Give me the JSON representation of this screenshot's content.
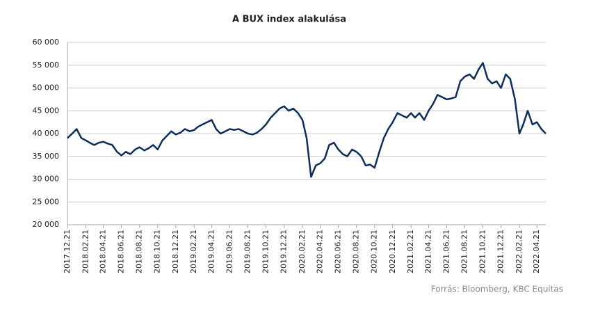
{
  "chart_data": {
    "type": "line",
    "title": "A BUX index alakulása",
    "source": "Forrás: Bloomberg, KBC Equitas",
    "x": [
      "2017.12.21",
      "2018.01.06",
      "2018.01.21",
      "2018.02.06",
      "2018.02.21",
      "2018.03.06",
      "2018.03.21",
      "2018.04.06",
      "2018.04.21",
      "2018.05.06",
      "2018.05.21",
      "2018.06.06",
      "2018.06.21",
      "2018.07.06",
      "2018.07.21",
      "2018.08.06",
      "2018.08.21",
      "2018.09.06",
      "2018.09.21",
      "2018.10.06",
      "2018.10.21",
      "2018.11.06",
      "2018.11.21",
      "2018.12.06",
      "2018.12.21",
      "2019.01.06",
      "2019.01.21",
      "2019.02.06",
      "2019.02.21",
      "2019.03.06",
      "2019.03.21",
      "2019.04.06",
      "2019.04.21",
      "2019.05.06",
      "2019.05.21",
      "2019.06.06",
      "2019.06.21",
      "2019.07.06",
      "2019.07.21",
      "2019.08.06",
      "2019.08.21",
      "2019.09.06",
      "2019.09.21",
      "2019.10.06",
      "2019.10.21",
      "2019.11.06",
      "2019.11.21",
      "2019.12.06",
      "2019.12.21",
      "2020.01.06",
      "2020.01.21",
      "2020.02.06",
      "2020.02.21",
      "2020.03.06",
      "2020.03.21",
      "2020.04.06",
      "2020.04.21",
      "2020.05.06",
      "2020.05.21",
      "2020.06.06",
      "2020.06.21",
      "2020.07.06",
      "2020.07.21",
      "2020.08.06",
      "2020.08.21",
      "2020.09.06",
      "2020.09.21",
      "2020.10.06",
      "2020.10.21",
      "2020.11.06",
      "2020.11.21",
      "2020.12.06",
      "2020.12.21",
      "2021.01.06",
      "2021.01.21",
      "2021.02.06",
      "2021.02.21",
      "2021.03.06",
      "2021.03.21",
      "2021.04.06",
      "2021.04.21",
      "2021.05.06",
      "2021.05.21",
      "2021.06.06",
      "2021.06.21",
      "2021.07.06",
      "2021.07.21",
      "2021.08.06",
      "2021.08.21",
      "2021.09.06",
      "2021.09.21",
      "2021.10.06",
      "2021.10.21",
      "2021.11.06",
      "2021.11.21",
      "2021.12.06",
      "2021.12.21",
      "2022.01.06",
      "2022.01.21",
      "2022.02.06",
      "2022.02.21",
      "2022.03.06",
      "2022.03.21",
      "2022.04.06",
      "2022.04.21",
      "2022.05.06",
      "2022.05.21"
    ],
    "series": [
      {
        "name": "BUX",
        "color": "#0d2d5a",
        "values": [
          39000,
          40000,
          41000,
          39000,
          38500,
          38000,
          37500,
          38000,
          38200,
          37800,
          37500,
          36000,
          35200,
          36000,
          35500,
          36500,
          37000,
          36300,
          36800,
          37500,
          36500,
          38500,
          39500,
          40500,
          39800,
          40200,
          41000,
          40500,
          40800,
          41500,
          42000,
          42500,
          43000,
          41000,
          40000,
          40500,
          41000,
          40800,
          41000,
          40500,
          40000,
          39800,
          40200,
          41000,
          42000,
          43500,
          44500,
          45500,
          46000,
          45000,
          45500,
          44500,
          43000,
          39000,
          30500,
          33000,
          33500,
          34500,
          37500,
          38000,
          36500,
          35500,
          35000,
          36500,
          36000,
          35000,
          33000,
          33200,
          32500,
          36000,
          39000,
          41000,
          42500,
          44500,
          44000,
          43500,
          44500,
          43500,
          44500,
          43000,
          45000,
          46500,
          48500,
          48000,
          47500,
          47700,
          48000,
          51500,
          52500,
          53000,
          52000,
          54000,
          55500,
          52000,
          51000,
          51500,
          50000,
          53000,
          52000,
          47500,
          40000,
          42000,
          45000,
          42000,
          42500,
          41000,
          40000
        ]
      }
    ],
    "xlim": [
      "2017.12.21",
      "2022.05.21"
    ],
    "xticks": [
      "2017.12.21",
      "2018.02.21",
      "2018.04.21",
      "2018.06.21",
      "2018.08.21",
      "2018.10.21",
      "2018.12.21",
      "2019.02.21",
      "2019.04.21",
      "2019.06.21",
      "2019.08.21",
      "2019.10.21",
      "2019.12.21",
      "2020.02.21",
      "2020.04.21",
      "2020.06.21",
      "2020.08.21",
      "2020.10.21",
      "2020.12.21",
      "2021.02.21",
      "2021.04.21",
      "2021.06.21",
      "2021.08.21",
      "2021.10.21",
      "2021.12.21",
      "2022.02.21",
      "2022.04.21"
    ],
    "ylim": [
      20000,
      60000
    ],
    "yticks": [
      {
        "value": 20000,
        "label": "20 000"
      },
      {
        "value": 25000,
        "label": "25 000"
      },
      {
        "value": 30000,
        "label": "30 000"
      },
      {
        "value": 35000,
        "label": "35 000"
      },
      {
        "value": 40000,
        "label": "40 000"
      },
      {
        "value": 45000,
        "label": "45 000"
      },
      {
        "value": 50000,
        "label": "50 000"
      },
      {
        "value": 55000,
        "label": "55 000"
      },
      {
        "value": 60000,
        "label": "60 000"
      }
    ],
    "grid": true
  }
}
